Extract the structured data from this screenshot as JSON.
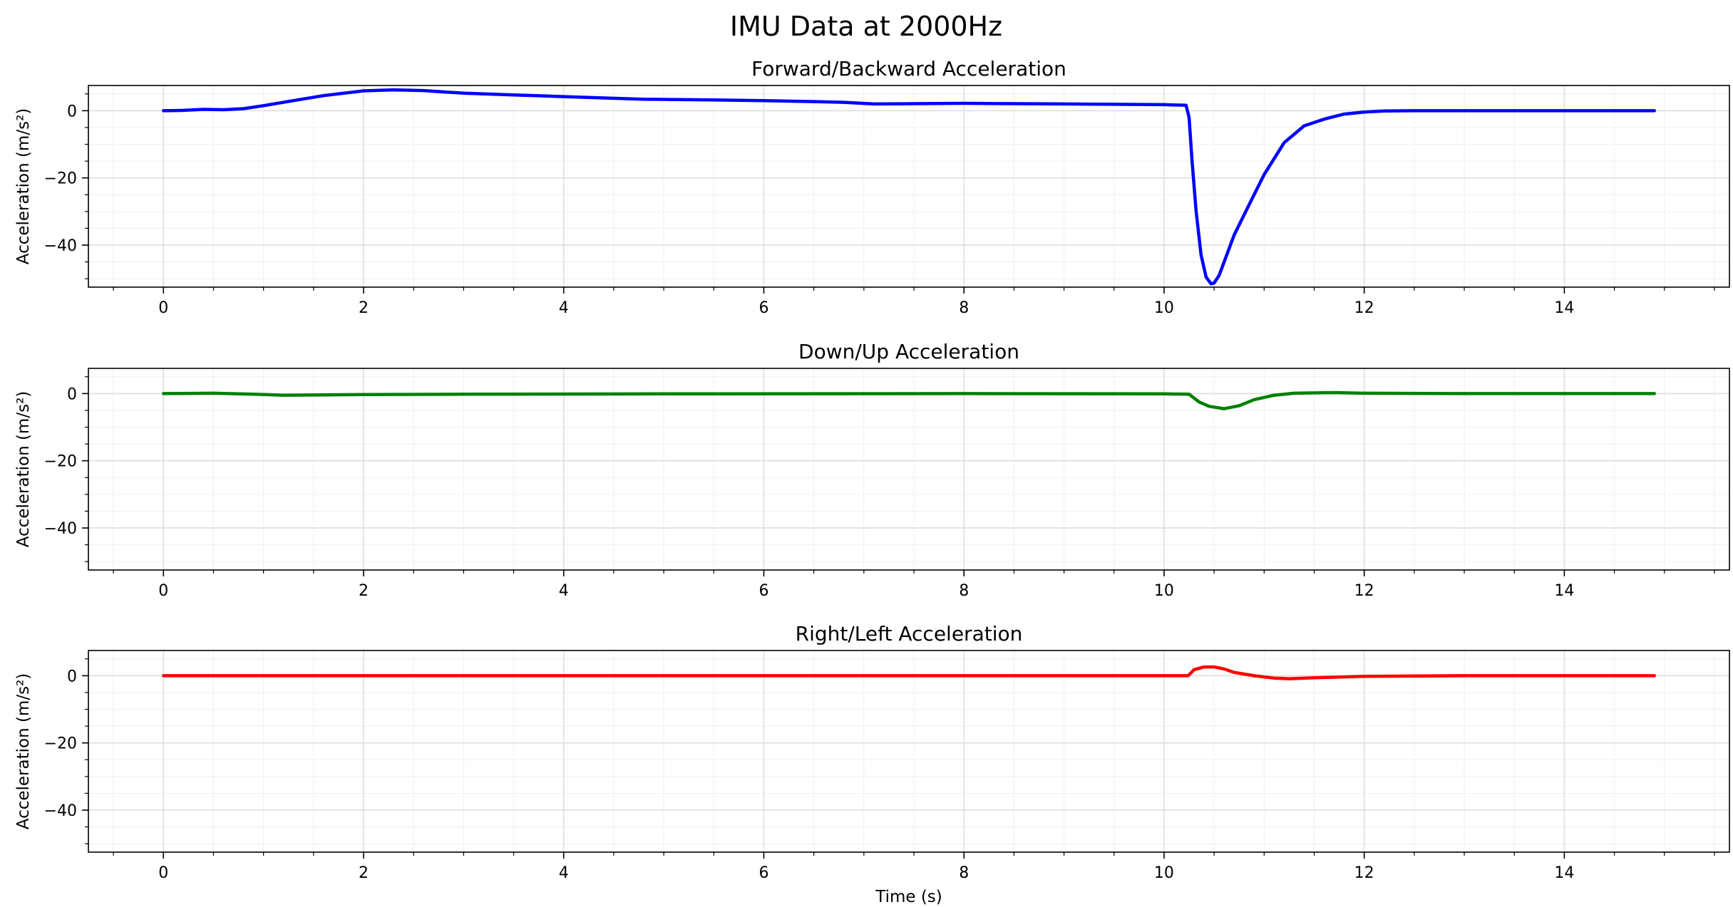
{
  "figure_title": "IMU Data at 2000Hz",
  "chart_data": [
    {
      "type": "line",
      "title": "Forward/Backward Acceleration",
      "xlabel": "",
      "ylabel": "Acceleration (m/s²)",
      "xlim": [
        -0.75,
        15.65
      ],
      "ylim": [
        -52.5,
        7.5
      ],
      "xticks": [
        0,
        2,
        4,
        6,
        8,
        10,
        12,
        14
      ],
      "yticks": [
        0,
        -20,
        -40
      ],
      "grid": true,
      "minor_ticks": true,
      "series": [
        {
          "color": "#0000ff",
          "x": [
            0,
            0.2,
            0.4,
            0.6,
            0.8,
            1.0,
            1.3,
            1.6,
            2.0,
            2.3,
            2.6,
            3.0,
            3.5,
            4.0,
            4.8,
            5.5,
            6.0,
            6.5,
            6.8,
            7.1,
            7.5,
            8.0,
            8.5,
            9.0,
            9.5,
            10.0,
            10.22,
            10.25,
            10.28,
            10.32,
            10.37,
            10.42,
            10.47,
            10.5,
            10.55,
            10.6,
            10.7,
            10.85,
            11.0,
            11.2,
            11.4,
            11.6,
            11.8,
            12.0,
            12.2,
            12.5,
            13.0,
            14.0,
            14.9
          ],
          "y": [
            0,
            0.1,
            0.4,
            0.3,
            0.6,
            1.5,
            3.0,
            4.5,
            5.9,
            6.2,
            6.0,
            5.2,
            4.7,
            4.2,
            3.4,
            3.2,
            3.0,
            2.7,
            2.5,
            2.0,
            2.1,
            2.2,
            2.1,
            2.0,
            1.9,
            1.8,
            1.6,
            -2,
            -15,
            -30,
            -43,
            -49.5,
            -51.5,
            -51.3,
            -49,
            -45,
            -37,
            -28,
            -19,
            -9.5,
            -4.5,
            -2.5,
            -1.0,
            -0.4,
            -0.1,
            0,
            0,
            0,
            0
          ]
        }
      ]
    },
    {
      "type": "line",
      "title": "Down/Up Acceleration",
      "xlabel": "",
      "ylabel": "Acceleration (m/s²)",
      "xlim": [
        -0.75,
        15.65
      ],
      "ylim": [
        -52.5,
        7.5
      ],
      "xticks": [
        0,
        2,
        4,
        6,
        8,
        10,
        12,
        14
      ],
      "yticks": [
        0,
        -20,
        -40
      ],
      "grid": true,
      "minor_ticks": true,
      "series": [
        {
          "color": "#008000",
          "x": [
            0,
            0.5,
            0.9,
            1.2,
            1.6,
            2.0,
            3.0,
            5.0,
            8.0,
            10.0,
            10.25,
            10.35,
            10.45,
            10.6,
            10.75,
            10.9,
            11.1,
            11.3,
            11.7,
            12.0,
            13.0,
            14.9
          ],
          "y": [
            0,
            0.1,
            -0.2,
            -0.5,
            -0.4,
            -0.3,
            -0.2,
            -0.1,
            0,
            -0.1,
            -0.2,
            -2.5,
            -3.8,
            -4.5,
            -3.6,
            -1.8,
            -0.5,
            0.1,
            0.3,
            0.1,
            0,
            0
          ]
        }
      ]
    },
    {
      "type": "line",
      "title": "Right/Left Acceleration",
      "xlabel": "Time (s)",
      "ylabel": "Acceleration (m/s²)",
      "xlim": [
        -0.75,
        15.65
      ],
      "ylim": [
        -52.5,
        7.5
      ],
      "xticks": [
        0,
        2,
        4,
        6,
        8,
        10,
        12,
        14
      ],
      "yticks": [
        0,
        -20,
        -40
      ],
      "grid": true,
      "minor_ticks": true,
      "series": [
        {
          "color": "#ff0000",
          "x": [
            0,
            5.0,
            10.0,
            10.24,
            10.3,
            10.4,
            10.5,
            10.6,
            10.7,
            10.9,
            11.1,
            11.25,
            11.5,
            12.0,
            13.0,
            14.9
          ],
          "y": [
            0,
            0,
            0,
            0,
            1.8,
            2.6,
            2.6,
            2.0,
            1.0,
            0,
            -0.7,
            -0.9,
            -0.6,
            -0.2,
            0,
            0
          ]
        }
      ]
    }
  ]
}
